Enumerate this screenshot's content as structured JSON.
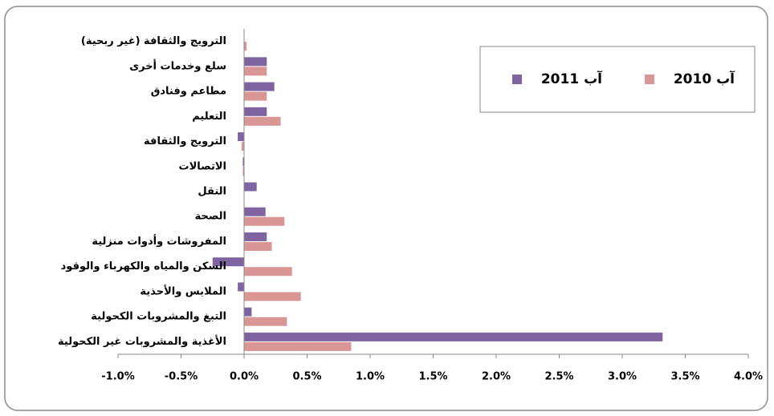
{
  "chart_data": {
    "type": "hbar",
    "categories": [
      "الترويج والثقافة (غير ربحية)",
      "سلع وخدمات أخرى",
      "مطاعم وفنادق",
      "التعليم",
      "الترويج والثقافة",
      "الاتصالات",
      "النقل",
      "الصحة",
      "المفروشات وأدوات منزلية",
      "السكن والمياه والكهرباء والوقود",
      "الملابس والأحذية",
      "التبغ والمشروبات الكحولية",
      "الأغذية والمشروبات غير الكحولية"
    ],
    "series": [
      {
        "name": "آب 2010",
        "color": "#d99694",
        "values": [
          0.02,
          0.18,
          0.18,
          0.29,
          -0.02,
          -0.01,
          0,
          0.32,
          0.22,
          0.38,
          0.45,
          0.34,
          0.85
        ]
      },
      {
        "name": "آب 2011",
        "color": "#8064a2",
        "values": [
          0,
          0.18,
          0.24,
          0.18,
          -0.05,
          -0.01,
          0.1,
          0.17,
          0.18,
          -0.25,
          -0.05,
          0.06,
          3.32
        ]
      }
    ],
    "xlim": [
      -1.0,
      4.0
    ],
    "xticks": [
      {
        "value": -1.0,
        "label": "-1.0%"
      },
      {
        "value": -0.5,
        "label": "-0.5%"
      },
      {
        "value": 0.0,
        "label": "0.0%"
      },
      {
        "value": 0.5,
        "label": "0.5%"
      },
      {
        "value": 1.0,
        "label": "1.0%"
      },
      {
        "value": 1.5,
        "label": "1.5%"
      },
      {
        "value": 2.0,
        "label": "2.0%"
      },
      {
        "value": 2.5,
        "label": "2.5%"
      },
      {
        "value": 3.0,
        "label": "3.0%"
      },
      {
        "value": 3.5,
        "label": "3.5%"
      },
      {
        "value": 4.0,
        "label": "4.0%"
      }
    ],
    "grid": false,
    "legend": "top-right"
  }
}
